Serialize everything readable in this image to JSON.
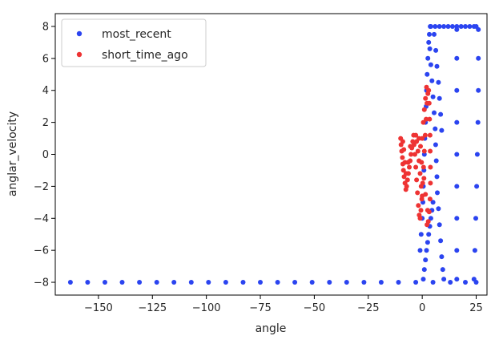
{
  "chart_data": {
    "type": "scatter",
    "title": "",
    "xlabel": "angle",
    "ylabel": "anglar_velocity",
    "xlim": [
      -170,
      30
    ],
    "ylim": [
      -8.8,
      8.8
    ],
    "xticks": [
      -150,
      -125,
      -100,
      -75,
      -50,
      -25,
      0,
      25
    ],
    "xtick_labels": [
      "−150",
      "−125",
      "−100",
      "−75",
      "−50",
      "−25",
      "0",
      "25"
    ],
    "yticks": [
      -8,
      -6,
      -4,
      -2,
      0,
      2,
      4,
      6,
      8
    ],
    "ytick_labels": [
      "−8",
      "−6",
      "−4",
      "−2",
      "0",
      "2",
      "4",
      "6",
      "8"
    ],
    "grid": false,
    "legend_position": "top-left",
    "colors": {
      "most_recent": "#2b44f0",
      "short_time_ago": "#ee3333"
    },
    "series": [
      {
        "name": "most_recent",
        "color": "#2b44f0",
        "points": [
          [
            -163,
            -8
          ],
          [
            -155,
            -8
          ],
          [
            -147,
            -8
          ],
          [
            -139,
            -8
          ],
          [
            -131,
            -8
          ],
          [
            -123,
            -8
          ],
          [
            -115,
            -8
          ],
          [
            -107,
            -8
          ],
          [
            -99,
            -8
          ],
          [
            -91,
            -8
          ],
          [
            -83,
            -8
          ],
          [
            -75,
            -8
          ],
          [
            -67,
            -8
          ],
          [
            -59,
            -8
          ],
          [
            -51,
            -8
          ],
          [
            -43,
            -8
          ],
          [
            -35,
            -8
          ],
          [
            -27,
            -8
          ],
          [
            -19,
            -8
          ],
          [
            -11,
            -8
          ],
          [
            -3,
            -8
          ],
          [
            5,
            -8
          ],
          [
            13,
            -8
          ],
          [
            20,
            -8
          ],
          [
            25,
            -8
          ],
          [
            0.5,
            -7.8
          ],
          [
            1,
            -7.2
          ],
          [
            1.5,
            -6.6
          ],
          [
            2,
            -6
          ],
          [
            2.5,
            -5.5
          ],
          [
            3,
            -5
          ],
          [
            3.5,
            -4.5
          ],
          [
            4,
            -4
          ],
          [
            4.5,
            -3.5
          ],
          [
            5,
            -3
          ],
          [
            -1,
            -6
          ],
          [
            -0.5,
            -5
          ],
          [
            0,
            -4
          ],
          [
            0.3,
            -3
          ],
          [
            0.5,
            -2
          ],
          [
            0.8,
            -1
          ],
          [
            1,
            0
          ],
          [
            1.2,
            1
          ],
          [
            1.5,
            2
          ],
          [
            1.8,
            3
          ],
          [
            2,
            4
          ],
          [
            2.3,
            5
          ],
          [
            2.6,
            6
          ],
          [
            3,
            7
          ],
          [
            3.3,
            7.5
          ],
          [
            3.7,
            8
          ],
          [
            4,
            8
          ],
          [
            6,
            8
          ],
          [
            8,
            8
          ],
          [
            10,
            8
          ],
          [
            12,
            8
          ],
          [
            14,
            8
          ],
          [
            16,
            8
          ],
          [
            18,
            8
          ],
          [
            20,
            8
          ],
          [
            22,
            8
          ],
          [
            24,
            8
          ],
          [
            25,
            8
          ],
          [
            3.5,
            6.6
          ],
          [
            4,
            5.6
          ],
          [
            4.5,
            4.6
          ],
          [
            5,
            3.6
          ],
          [
            5.5,
            2.6
          ],
          [
            6,
            1.6
          ],
          [
            6.2,
            0.6
          ],
          [
            6.5,
            -0.4
          ],
          [
            6.8,
            -1.4
          ],
          [
            7,
            -2.4
          ],
          [
            7.5,
            -3.4
          ],
          [
            8,
            -4.4
          ],
          [
            8.5,
            -5.4
          ],
          [
            9,
            -6.4
          ],
          [
            9.5,
            -7.2
          ],
          [
            10,
            -7.8
          ],
          [
            5.5,
            7.5
          ],
          [
            6.3,
            6.5
          ],
          [
            6.8,
            5.5
          ],
          [
            7.5,
            4.5
          ],
          [
            8,
            3.5
          ],
          [
            8.5,
            2.5
          ],
          [
            9,
            1.5
          ],
          [
            16,
            -7.8
          ],
          [
            16,
            -6
          ],
          [
            16,
            -4
          ],
          [
            16,
            -2
          ],
          [
            16,
            0
          ],
          [
            16,
            2
          ],
          [
            16,
            4
          ],
          [
            16,
            6
          ],
          [
            16,
            7.8
          ],
          [
            24,
            -7.8
          ],
          [
            24.4,
            -6
          ],
          [
            24.8,
            -4
          ],
          [
            25.2,
            -2
          ],
          [
            25.5,
            0
          ],
          [
            25.8,
            2
          ],
          [
            26,
            4
          ],
          [
            26,
            6
          ],
          [
            26,
            7.8
          ]
        ]
      },
      {
        "name": "short_time_ago",
        "color": "#ee3333",
        "points": [
          [
            -10,
            1
          ],
          [
            -9.8,
            0.6
          ],
          [
            -9.5,
            0.2
          ],
          [
            -9.2,
            -0.2
          ],
          [
            -9,
            -0.6
          ],
          [
            -8.7,
            -1
          ],
          [
            -8.4,
            -1.4
          ],
          [
            -8,
            -1.8
          ],
          [
            -7.6,
            -2.2
          ],
          [
            -7.2,
            -2
          ],
          [
            -6.8,
            -1.6
          ],
          [
            -6.4,
            -1.2
          ],
          [
            -6,
            -0.8
          ],
          [
            -5.6,
            -0.4
          ],
          [
            -5.2,
            0
          ],
          [
            -4.8,
            0.4
          ],
          [
            -4.4,
            0.8
          ],
          [
            -4,
            1.2
          ],
          [
            -3.8,
            0.6
          ],
          [
            -3.4,
            0
          ],
          [
            -3,
            -0.8
          ],
          [
            -2.6,
            -1.6
          ],
          [
            -2.2,
            -2.4
          ],
          [
            -1.8,
            -3.2
          ],
          [
            -1.4,
            -3.8
          ],
          [
            -1,
            -4
          ],
          [
            -0.6,
            -3.5
          ],
          [
            -0.2,
            -2.8
          ],
          [
            0.2,
            -1.8
          ],
          [
            0.6,
            -0.8
          ],
          [
            1,
            0.2
          ],
          [
            1.4,
            1.2
          ],
          [
            1.8,
            2.2
          ],
          [
            2.2,
            3.2
          ],
          [
            2.6,
            3.8
          ],
          [
            3,
            4
          ],
          [
            3.2,
            3.2
          ],
          [
            3.4,
            2.2
          ],
          [
            3.6,
            1.2
          ],
          [
            3.7,
            0.2
          ],
          [
            3.8,
            -0.8
          ],
          [
            3.8,
            -1.8
          ],
          [
            3.6,
            -2.8
          ],
          [
            3.2,
            -3.6
          ],
          [
            2.8,
            -4.2
          ],
          [
            2.2,
            -4.4
          ],
          [
            -3,
            1.2
          ],
          [
            -2.6,
            0.8
          ],
          [
            -2,
            0.2
          ],
          [
            -1.5,
            -0.4
          ],
          [
            -1,
            -1.2
          ],
          [
            -0.5,
            -2
          ],
          [
            0,
            -2.6
          ],
          [
            0,
            1
          ],
          [
            0.5,
            2
          ],
          [
            1,
            2.8
          ],
          [
            1.5,
            3.5
          ],
          [
            2,
            4.2
          ],
          [
            -0.8,
            0.5
          ],
          [
            -1.5,
            1
          ],
          [
            -0.3,
            -0.5
          ],
          [
            0.8,
            -1.5
          ],
          [
            1.5,
            -2.5
          ],
          [
            2.5,
            -3.5
          ],
          [
            -9,
            0.8
          ],
          [
            -8.5,
            0.3
          ],
          [
            -8,
            -0.5
          ],
          [
            -7.5,
            -1.2
          ],
          [
            -6.5,
            -0.5
          ],
          [
            -5.5,
            0.5
          ]
        ]
      }
    ]
  }
}
